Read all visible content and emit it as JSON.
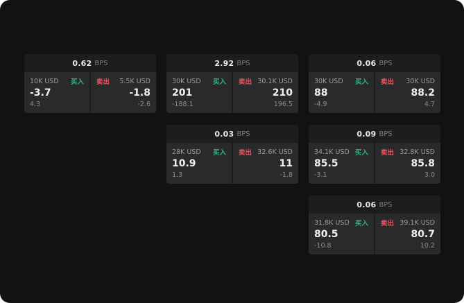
{
  "labels": {
    "buy": "买入",
    "sell": "卖出",
    "bps": "BPS"
  },
  "colors": {
    "buy": "#2fb380",
    "sell": "#e5555f",
    "background": "#121212",
    "card": "#1d1d1d",
    "panel": "#2a2a2a"
  },
  "cards": [
    {
      "spread": "0.62",
      "buy": {
        "size": "10K USD",
        "price": "-3.7",
        "sub": "4.3"
      },
      "sell": {
        "size": "5.5K USD",
        "price": "-1.8",
        "sub": "-2.6"
      }
    },
    {
      "spread": "2.92",
      "buy": {
        "size": "30K USD",
        "price": "201",
        "sub": "-188.1"
      },
      "sell": {
        "size": "30.1K USD",
        "price": "210",
        "sub": "196.5"
      }
    },
    {
      "spread": "0.06",
      "buy": {
        "size": "30K USD",
        "price": "88",
        "sub": "-4.9"
      },
      "sell": {
        "size": "30K USD",
        "price": "88.2",
        "sub": "4.7"
      }
    },
    {
      "spread": "0.03",
      "buy": {
        "size": "28K USD",
        "price": "10.9",
        "sub": "1.3"
      },
      "sell": {
        "size": "32.6K USD",
        "price": "11",
        "sub": "-1.8"
      }
    },
    {
      "spread": "0.09",
      "buy": {
        "size": "34.1K USD",
        "price": "85.5",
        "sub": "-3.1"
      },
      "sell": {
        "size": "32.8K USD",
        "price": "85.8",
        "sub": "3.0"
      }
    },
    {
      "spread": "0.06",
      "buy": {
        "size": "31.8K USD",
        "price": "80.5",
        "sub": "-10.8"
      },
      "sell": {
        "size": "39.1K USD",
        "price": "80.7",
        "sub": "10.2"
      }
    }
  ]
}
